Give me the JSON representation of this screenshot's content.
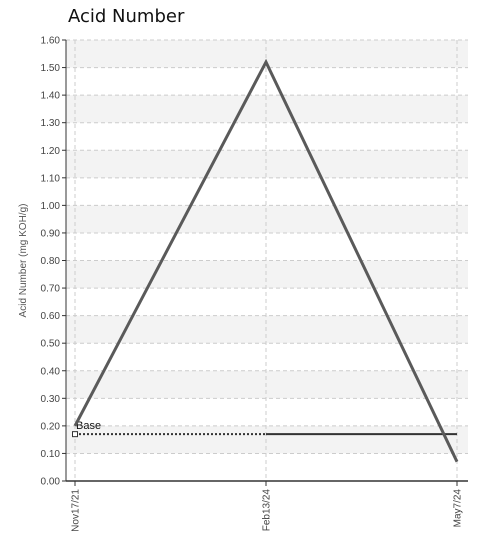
{
  "chart_data": {
    "type": "line",
    "title": "Acid Number",
    "ylabel": "Acid Number (mg KOH/g)",
    "xlabel": "",
    "ylim": [
      0,
      1.6
    ],
    "y_ticks": [
      "0.00",
      "0.10",
      "0.20",
      "0.30",
      "0.40",
      "0.50",
      "0.60",
      "0.70",
      "0.80",
      "0.90",
      "1.00",
      "1.10",
      "1.20",
      "1.30",
      "1.40",
      "1.50",
      "1.60"
    ],
    "categories": [
      "Nov17/21",
      "Feb13/24",
      "May7/24"
    ],
    "series": [
      {
        "values": [
          0.2,
          1.52,
          0.07
        ],
        "color": "#5a5a5a",
        "style": "solid"
      }
    ],
    "reference_lines": [
      {
        "name": "Base",
        "value": 0.17,
        "color": "#333333",
        "style": "dotted-then-solid"
      }
    ],
    "grid": true,
    "band_fill": "#f3f3f3",
    "grid_color": "#cccccc"
  }
}
